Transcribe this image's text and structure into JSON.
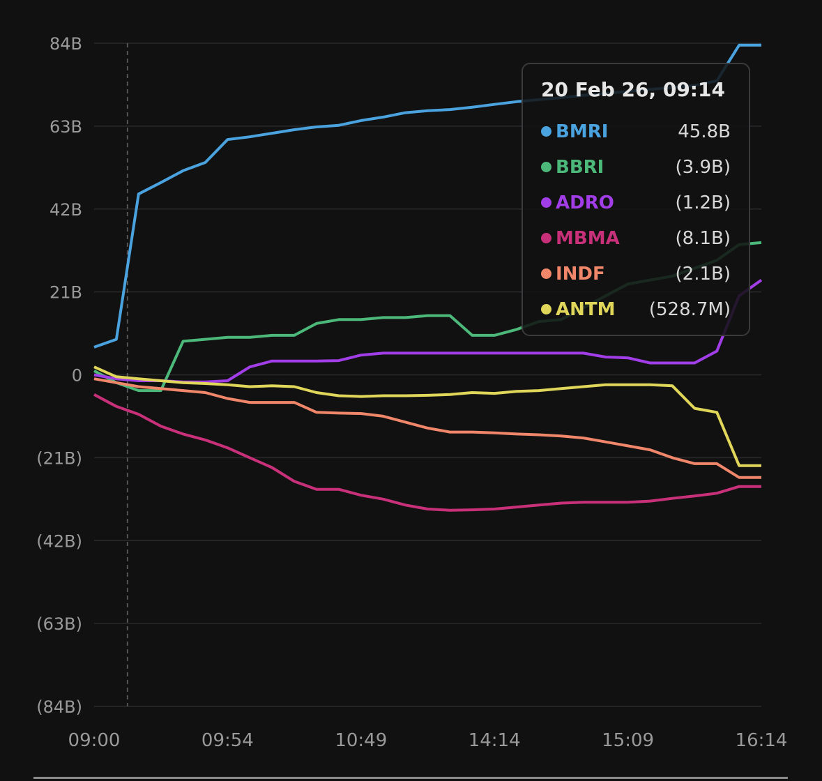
{
  "chart_data": {
    "type": "line",
    "title": "",
    "xlabel": "",
    "ylabel": "",
    "x_tick_labels": [
      "09:00",
      "09:54",
      "10:49",
      "14:14",
      "15:09",
      "16:14"
    ],
    "x_tick_indices": [
      0,
      6,
      12,
      18,
      24,
      30
    ],
    "y_ticks": [
      84,
      63,
      42,
      21,
      0,
      -21,
      -42,
      -63,
      -84
    ],
    "y_tick_labels": [
      "84B",
      "63B",
      "42B",
      "21B",
      "0",
      "(21B)",
      "(42B)",
      "(63B)",
      "(84B)"
    ],
    "ylim": [
      -84,
      84
    ],
    "unit": "B",
    "grid": true,
    "hover_index": 1.5,
    "series": [
      {
        "name": "BMRI",
        "color": "#4aa3df",
        "values": [
          7,
          9,
          45.8,
          48.7,
          51.7,
          53.8,
          59.6,
          60.3,
          61.2,
          62.1,
          62.8,
          63.2,
          64.4,
          65.3,
          66.4,
          66.9,
          67.2,
          67.8,
          68.5,
          69.2,
          69.7,
          70.2,
          70.8,
          71.3,
          71.8,
          72.3,
          72.8,
          73.3,
          74.5,
          83.5,
          83.5
        ]
      },
      {
        "name": "BBRI",
        "color": "#4cb97a",
        "values": [
          1,
          -2,
          -4,
          -4,
          8.5,
          9,
          9.5,
          9.5,
          10,
          10,
          13,
          14,
          14,
          14.5,
          14.5,
          15,
          15,
          10,
          10,
          11.5,
          13.5,
          14,
          17,
          20,
          23,
          24,
          25,
          27,
          29,
          33,
          33.5
        ]
      },
      {
        "name": "ADRO",
        "color": "#a23ee8",
        "values": [
          0,
          -1,
          -1.5,
          -1.5,
          -1.8,
          -1.8,
          -1.5,
          2,
          3.5,
          3.5,
          3.5,
          3.6,
          5,
          5.5,
          5.5,
          5.5,
          5.5,
          5.5,
          5.5,
          5.5,
          5.5,
          5.5,
          5.5,
          4.5,
          4.3,
          3,
          3,
          3,
          6,
          20,
          24
        ]
      },
      {
        "name": "MBMA",
        "color": "#c8317a",
        "values": [
          -5,
          -8,
          -10,
          -13,
          -15,
          -16.5,
          -18.5,
          -21,
          -23.5,
          -27,
          -29,
          -29,
          -30.5,
          -31.5,
          -33,
          -34,
          -34.3,
          -34.2,
          -34,
          -33.5,
          -33,
          -32.5,
          -32.3,
          -32.3,
          -32.3,
          -32,
          -31.3,
          -30.7,
          -30,
          -28.3,
          -28.3
        ]
      },
      {
        "name": "INDF",
        "color": "#f0866a",
        "values": [
          -1,
          -2,
          -3,
          -3.5,
          -4,
          -4.5,
          -6,
          -7,
          -7,
          -7,
          -9.5,
          -9.7,
          -9.8,
          -10.5,
          -12,
          -13.5,
          -14.5,
          -14.5,
          -14.7,
          -15,
          -15.2,
          -15.5,
          -16,
          -17,
          -18,
          -19,
          -21,
          -22.5,
          -22.5,
          -26,
          -26
        ]
      },
      {
        "name": "ANTM",
        "color": "#e0d65a",
        "values": [
          2,
          -0.5,
          -1,
          -1.5,
          -2,
          -2.2,
          -2.5,
          -3,
          -2.8,
          -3,
          -4.5,
          -5.3,
          -5.5,
          -5.3,
          -5.3,
          -5.2,
          -5,
          -4.5,
          -4.7,
          -4.2,
          -4,
          -3.5,
          -3,
          -2.5,
          -2.5,
          -2.5,
          -2.8,
          -8.5,
          -9.5,
          -23,
          -23
        ]
      }
    ]
  },
  "tooltip": {
    "title": "20 Feb 26, 09:14",
    "rows": [
      {
        "name": "BMRI",
        "value": "45.8B",
        "color": "#4aa3df"
      },
      {
        "name": "BBRI",
        "value": "(3.9B)",
        "color": "#4cb97a"
      },
      {
        "name": "ADRO",
        "value": "(1.2B)",
        "color": "#a23ee8"
      },
      {
        "name": "MBMA",
        "value": "(8.1B)",
        "color": "#c8317a"
      },
      {
        "name": "INDF",
        "value": "(2.1B)",
        "color": "#f0866a"
      },
      {
        "name": "ANTM",
        "value": "(528.7M)",
        "color": "#e0d65a"
      }
    ]
  }
}
